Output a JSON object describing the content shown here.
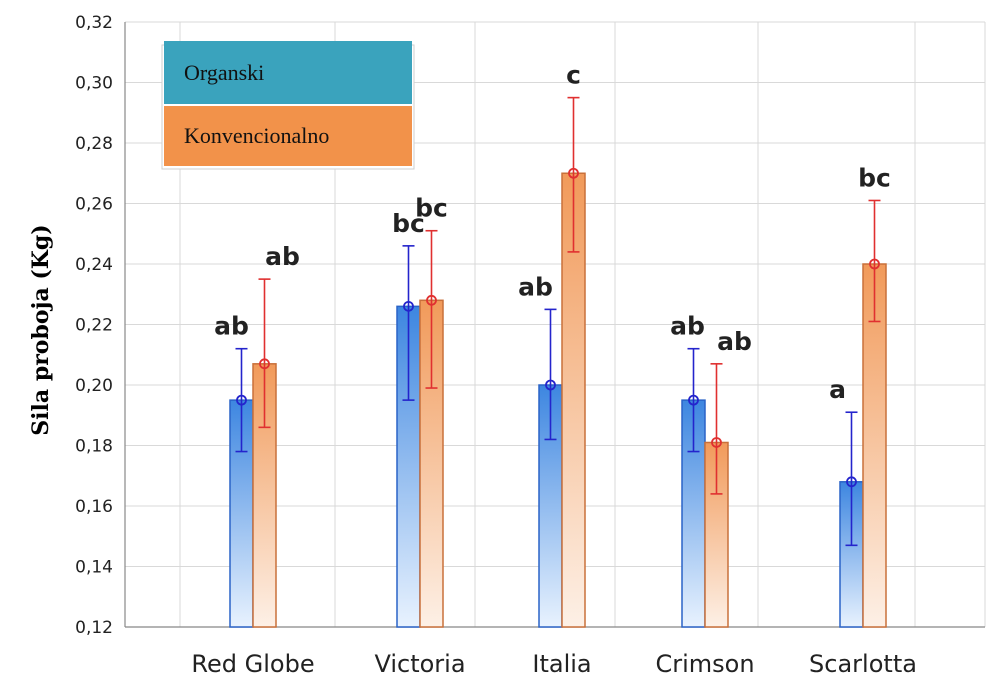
{
  "chart_data": {
    "type": "bar",
    "ylabel": "Sila proboja (Kg)",
    "ylim": [
      0.12,
      0.32
    ],
    "yticks": [
      "0,12",
      "0,14",
      "0,16",
      "0,18",
      "0,20",
      "0,22",
      "0,24",
      "0,26",
      "0,28",
      "0,30",
      "0,32"
    ],
    "categories": [
      "Red Globe",
      "Victoria",
      "Italia",
      "Crimson",
      "Scarlotta"
    ],
    "series": [
      {
        "name": "Organski",
        "color": "#4a8fe0",
        "values": [
          0.195,
          0.226,
          0.2,
          0.195,
          0.168
        ],
        "err_low": [
          0.178,
          0.195,
          0.182,
          0.178,
          0.147
        ],
        "err_high": [
          0.212,
          0.246,
          0.225,
          0.212,
          0.191
        ],
        "sig_labels": [
          "ab",
          "bc",
          "ab",
          "ab",
          "a"
        ]
      },
      {
        "name": "Konvencionalno",
        "color": "#f0a070",
        "values": [
          0.207,
          0.228,
          0.27,
          0.181,
          0.24
        ],
        "err_low": [
          0.186,
          0.199,
          0.244,
          0.164,
          0.221
        ],
        "err_high": [
          0.235,
          0.251,
          0.295,
          0.207,
          0.261
        ],
        "sig_labels": [
          "ab",
          "bc",
          "c",
          "ab",
          "bc"
        ]
      }
    ],
    "grid": true,
    "legend": "top-left"
  }
}
